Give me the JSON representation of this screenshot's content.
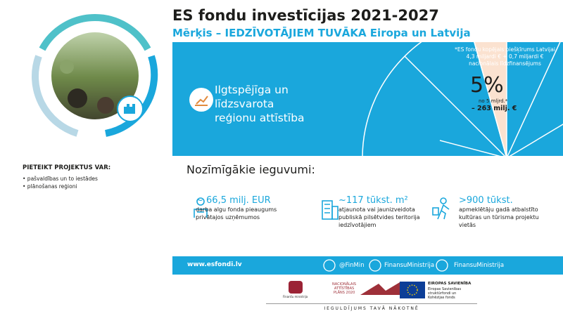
{
  "header": {
    "title": "ES fondu investīcijas 2021-2027",
    "subtitle": "Mērķis – IEDZĪVOTĀJIEM TUVĀKA Eiropa un Latvija"
  },
  "banner": {
    "topic_lines": [
      "Ilgtspējīga un",
      "līdzsvarota",
      "reģionu attīstība"
    ],
    "note_lines": [
      "*ES fondu kopējais piešķīrums Latvijai",
      "4,3 miljardi € + 0,7 miljardi €",
      "nacionālais līdzfinansējums"
    ],
    "share": "5%",
    "share_note": "no 5 mljrd.*",
    "amount": "– 263 milj. €"
  },
  "apply": {
    "title": "PIETEIKT PROJEKTUS VAR:",
    "items": [
      "• pašvaldības un to iestādes",
      "• plānošanas reģioni"
    ]
  },
  "benefits": {
    "title": "Nozīmīgākie ieguvumi:",
    "items": [
      {
        "value": "~ 66,5 milj. EUR",
        "lines": [
          "darba algu fonda pieaugums",
          "privātajos uzņēmumos"
        ]
      },
      {
        "value": "~117 tūkst. m²",
        "lines": [
          "atjaunota vai jaunizveidota",
          "publiskā pilsētvides teritorija",
          "iedzīvotājiem"
        ]
      },
      {
        "value": ">900 tūkst.",
        "lines": [
          "apmeklētāju gadā atbalstīto",
          "kultūras un tūrisma projektu",
          "vietās"
        ]
      }
    ]
  },
  "footer": {
    "website": "www.esfondi.lv",
    "social": [
      "@FinMin",
      "FinansuMinistrija",
      "FinansuMinistrija"
    ],
    "logos": {
      "ministry": "Finanšu ministrija",
      "nap": [
        "NACIONĀLAIS",
        "ATTĪSTĪBAS",
        "PLĀNS 2020"
      ],
      "eu_title": "EIROPAS SAVIENĪBA",
      "eu_lines": [
        "Eiropas Savienības",
        "struktūrfondi un",
        "Kohēzijas fonds"
      ]
    },
    "slogan": "IEGULDĪJUMS TAVĀ NĀKOTNĒ"
  }
}
